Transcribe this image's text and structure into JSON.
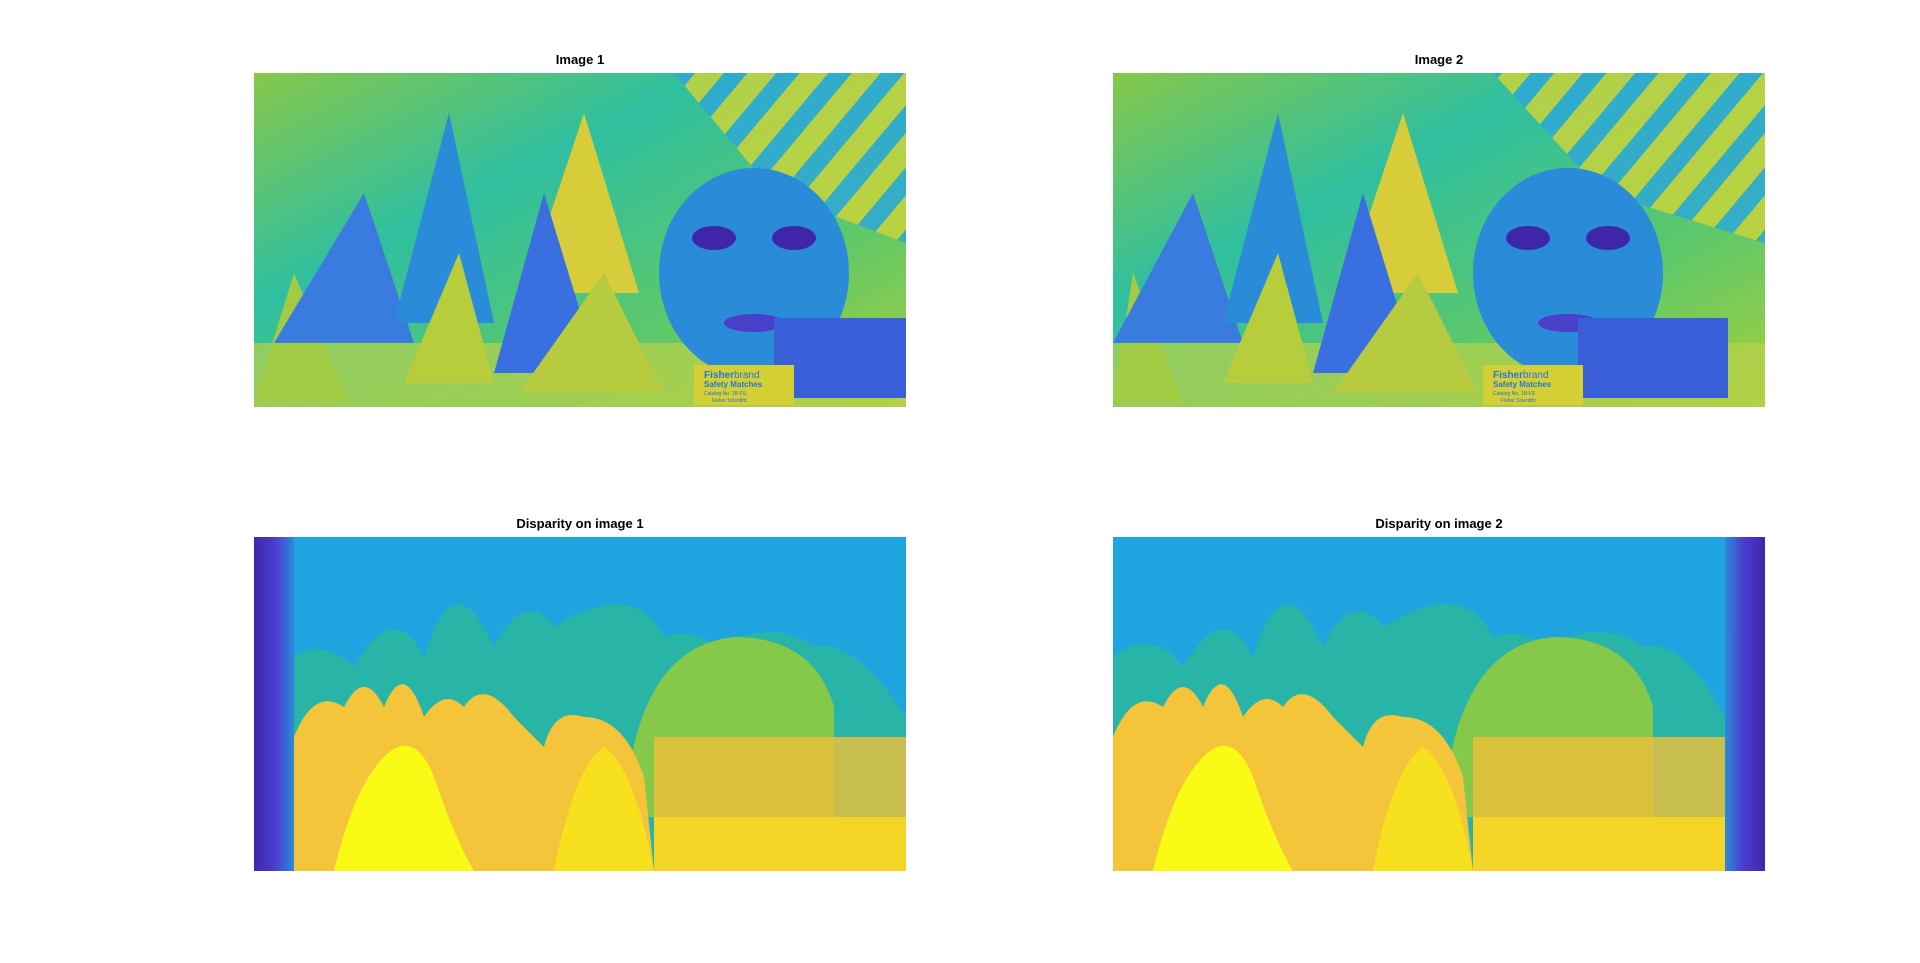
{
  "figure": {
    "panels": [
      {
        "title": "Image 1"
      },
      {
        "title": "Image 2"
      },
      {
        "title": "Disparity on image 1"
      },
      {
        "title": "Disparity on image 2"
      }
    ],
    "matchbox": {
      "brand_bold": "Fisher",
      "brand_light": "brand",
      "product": "Safety Matches",
      "catalog": "Catalog No. 1B-FS",
      "maker": "Fisher Scientific"
    },
    "colors": {
      "colormap_low": "#3e26a8",
      "colormap_midlow": "#2a8bd8",
      "colormap_mid": "#1fb7a3",
      "colormap_midhigh": "#86c84a",
      "colormap_high": "#f9fb15"
    }
  }
}
